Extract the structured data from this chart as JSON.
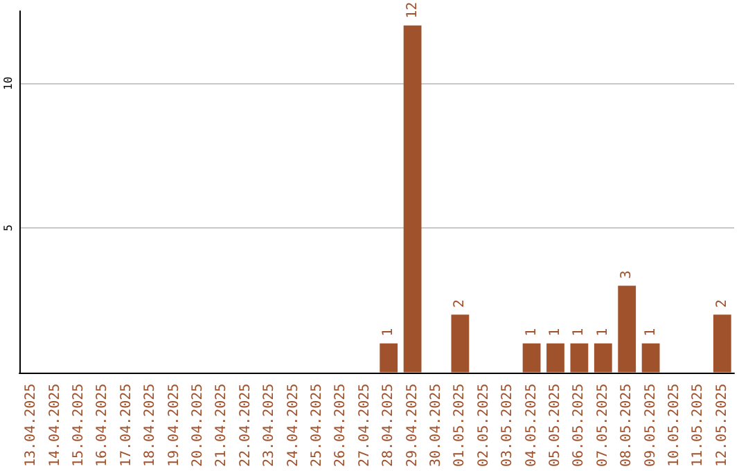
{
  "chart_data": {
    "type": "bar",
    "categories": [
      "13.04.2025",
      "14.04.2025",
      "15.04.2025",
      "16.04.2025",
      "17.04.2025",
      "18.04.2025",
      "19.04.2025",
      "20.04.2025",
      "21.04.2025",
      "22.04.2025",
      "23.04.2025",
      "24.04.2025",
      "25.04.2025",
      "26.04.2025",
      "27.04.2025",
      "28.04.2025",
      "29.04.2025",
      "30.04.2025",
      "01.05.2025",
      "02.05.2025",
      "03.05.2025",
      "04.05.2025",
      "05.05.2025",
      "06.05.2025",
      "07.05.2025",
      "08.05.2025",
      "09.05.2025",
      "10.05.2025",
      "11.05.2025",
      "12.05.2025"
    ],
    "values": [
      0,
      0,
      0,
      0,
      0,
      0,
      0,
      0,
      0,
      0,
      0,
      0,
      0,
      0,
      0,
      1,
      12,
      0,
      2,
      0,
      0,
      1,
      1,
      1,
      1,
      3,
      1,
      0,
      0,
      2
    ],
    "value_labels": [
      null,
      null,
      null,
      null,
      null,
      null,
      null,
      null,
      null,
      null,
      null,
      null,
      null,
      null,
      null,
      "1",
      "12",
      null,
      "2",
      null,
      null,
      "1",
      "1",
      "1",
      "1",
      "3",
      "1",
      null,
      null,
      "2"
    ],
    "color": "#a0522d",
    "ylim": [
      0,
      12.5
    ],
    "yticks": [
      {
        "value": 0,
        "label": null
      },
      5,
      10
    ],
    "grid": "y"
  }
}
